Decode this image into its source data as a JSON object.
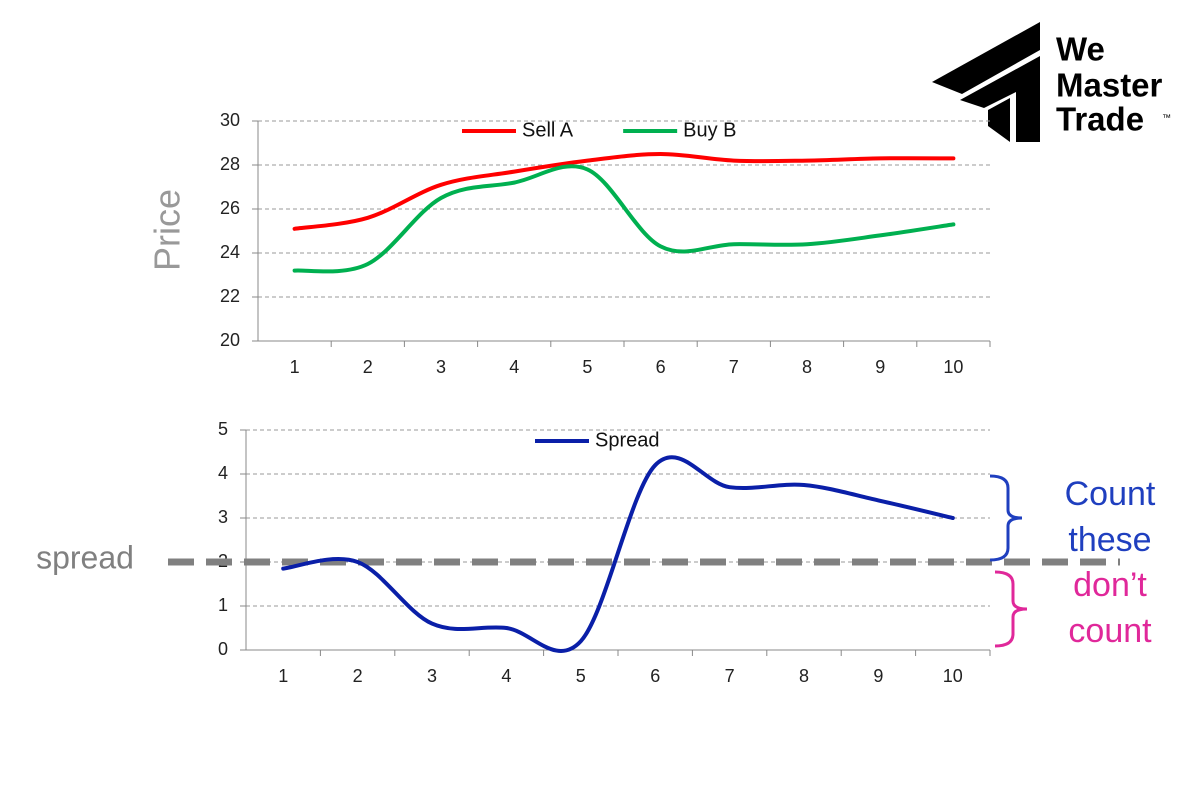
{
  "chart_data": [
    {
      "type": "line",
      "ylabel": "Price",
      "categories": [
        "1",
        "2",
        "3",
        "4",
        "5",
        "6",
        "7",
        "8",
        "9",
        "10"
      ],
      "series": [
        {
          "name": "Sell A",
          "color": "#ff0000",
          "values": [
            25.1,
            25.6,
            27.1,
            27.7,
            28.2,
            28.5,
            28.2,
            28.2,
            28.3,
            28.3
          ]
        },
        {
          "name": "Buy B",
          "color": "#00b050",
          "values": [
            23.2,
            23.5,
            26.5,
            27.2,
            27.8,
            24.3,
            24.4,
            24.4,
            24.8,
            25.3
          ]
        }
      ],
      "ylim": [
        20,
        30
      ],
      "yticks": [
        20,
        22,
        24,
        26,
        28,
        30
      ],
      "grid": true,
      "legend": "top"
    },
    {
      "type": "line",
      "categories": [
        "1",
        "2",
        "3",
        "4",
        "5",
        "6",
        "7",
        "8",
        "9",
        "10"
      ],
      "series": [
        {
          "name": "Spread",
          "color": "#0a1fa8",
          "values": [
            1.85,
            2.0,
            0.6,
            0.5,
            0.2,
            4.2,
            3.7,
            3.75,
            3.4,
            3.0
          ]
        }
      ],
      "ylim": [
        0,
        5
      ],
      "yticks": [
        0,
        1,
        2,
        3,
        4,
        5
      ],
      "grid": true,
      "legend": "top",
      "threshold": {
        "label": "spread",
        "value": 2,
        "color": "#808080"
      },
      "annotations": [
        {
          "lines": [
            "Count",
            "these"
          ],
          "color": "#1f3fbf"
        },
        {
          "lines": [
            "don’t",
            "count"
          ],
          "color": "#e0289a"
        }
      ]
    }
  ],
  "logo": {
    "lines": [
      "We",
      "Master",
      "Trade"
    ],
    "mark": "™"
  }
}
